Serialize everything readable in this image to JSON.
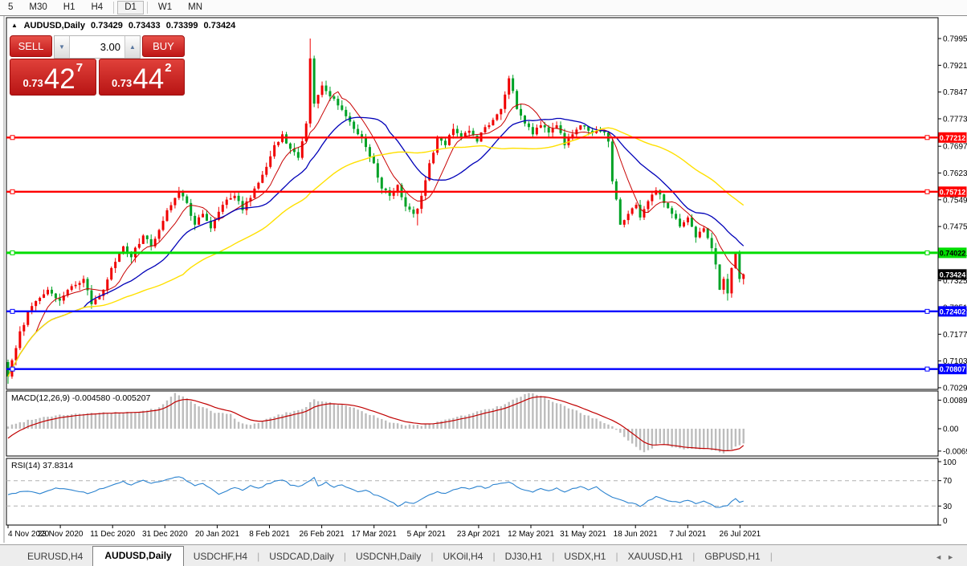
{
  "ui": {
    "timeframes": [
      {
        "label": "5"
      },
      {
        "label": "M30"
      },
      {
        "label": "H1"
      },
      {
        "label": "H4"
      },
      {
        "label": "D1",
        "active": true
      },
      {
        "label": "W1"
      },
      {
        "label": "MN"
      }
    ],
    "title": {
      "collapse_icon": "▲",
      "symbol": "AUDUSD,Daily"
    },
    "trade_panel": {
      "sell_label": "SELL",
      "buy_label": "BUY",
      "volume": "3.00",
      "spin_down": "▼",
      "spin_up": "▲",
      "sell_price": {
        "prefix": "0.73",
        "big": "42",
        "sup": "7"
      },
      "buy_price": {
        "prefix": "0.73",
        "big": "44",
        "sup": "2"
      }
    },
    "tab_bar": {
      "tabs": [
        {
          "label": "EURUSD,H4"
        },
        {
          "label": "AUDUSD,Daily",
          "active": true
        },
        {
          "label": "USDCHF,H4"
        },
        {
          "label": "USDCAD,Daily"
        },
        {
          "label": "USDCNH,Daily"
        },
        {
          "label": "UKOil,H4"
        },
        {
          "label": "DJ30,H1"
        },
        {
          "label": "USDX,H1"
        },
        {
          "label": "XAUUSD,H1"
        },
        {
          "label": "GBPUSD,H1"
        }
      ],
      "scroll_left": "◄",
      "scroll_right": "►"
    }
  },
  "chart_data": {
    "type": "candlestick",
    "symbol": "AUDUSD",
    "timeframe": "Daily",
    "quote": {
      "open": "0.73429",
      "high": "0.73433",
      "low": "0.73399",
      "close": "0.73424"
    },
    "current_price": "0.73424",
    "colors": {
      "up_candle": "#f00000",
      "down_candle": "#00a226",
      "ma_fast": "#c80000",
      "ma_mid": "#0000b8",
      "ma_slow": "#ffe000",
      "level_red": "#ff0000",
      "level_green": "#00dd00",
      "level_blue": "#0000ff",
      "macd_hist": "#bdbdbd",
      "macd_signal": "#c00000",
      "rsi_line": "#2a82cf"
    },
    "y_axis": {
      "ticks": [
        "0.79950",
        "0.79210",
        "0.78470",
        "0.77730",
        "0.76970",
        "0.76230",
        "0.75490",
        "0.74750",
        "0.74010",
        "0.73250",
        "0.72510",
        "0.71770",
        "0.71030",
        "0.70290"
      ]
    },
    "x_axis": {
      "labels": [
        "4 Nov 2020",
        "23 Nov 2020",
        "11 Dec 2020",
        "31 Dec 2020",
        "20 Jan 2021",
        "8 Feb 2021",
        "26 Feb 2021",
        "17 Mar 2021",
        "5 Apr 2021",
        "23 Apr 2021",
        "12 May 2021",
        "31 May 2021",
        "18 Jun 2021",
        "7 Jul 2021",
        "26 Jul 2021"
      ]
    },
    "levels": [
      {
        "price": "0.77212",
        "value": 0.77212,
        "color": "#ff0000",
        "text": "#ffffff"
      },
      {
        "price": "0.75712",
        "value": 0.75712,
        "color": "#ff0000",
        "text": "#ffffff"
      },
      {
        "price": "0.74022",
        "value": 0.74022,
        "color": "#00dd00",
        "text": "#000000"
      },
      {
        "price": "0.72402",
        "value": 0.72402,
        "color": "#0000ff",
        "text": "#ffffff"
      },
      {
        "price": "0.70807",
        "value": 0.70807,
        "color": "#0000ff",
        "text": "#ffffff"
      }
    ],
    "bars": 186,
    "close_anchors": [
      [
        0,
        0.706
      ],
      [
        1,
        0.7105
      ],
      [
        3,
        0.7185
      ],
      [
        6,
        0.7255
      ],
      [
        10,
        0.73
      ],
      [
        13,
        0.727
      ],
      [
        16,
        0.731
      ],
      [
        19,
        0.733
      ],
      [
        21,
        0.726
      ],
      [
        24,
        0.73
      ],
      [
        26,
        0.736
      ],
      [
        29,
        0.742
      ],
      [
        31,
        0.739
      ],
      [
        34,
        0.745
      ],
      [
        36,
        0.742
      ],
      [
        40,
        0.752
      ],
      [
        43,
        0.757
      ],
      [
        45,
        0.754
      ],
      [
        47,
        0.748
      ],
      [
        49,
        0.751
      ],
      [
        51,
        0.747
      ],
      [
        54,
        0.7535
      ],
      [
        57,
        0.756
      ],
      [
        59,
        0.752
      ],
      [
        62,
        0.758
      ],
      [
        65,
        0.764
      ],
      [
        67,
        0.77
      ],
      [
        69,
        0.773
      ],
      [
        71,
        0.769
      ],
      [
        73,
        0.7665
      ],
      [
        75,
        0.776
      ],
      [
        76,
        0.794
      ],
      [
        77,
        0.7815
      ],
      [
        79,
        0.7865
      ],
      [
        81,
        0.7835
      ],
      [
        83,
        0.781
      ],
      [
        85,
        0.778
      ],
      [
        87,
        0.7745
      ],
      [
        89,
        0.772
      ],
      [
        92,
        0.765
      ],
      [
        94,
        0.758
      ],
      [
        96,
        0.756
      ],
      [
        98,
        0.759
      ],
      [
        100,
        0.753
      ],
      [
        102,
        0.751
      ],
      [
        103,
        0.7524
      ],
      [
        104,
        0.756
      ],
      [
        106,
        0.765
      ],
      [
        108,
        0.772
      ],
      [
        110,
        0.77
      ],
      [
        112,
        0.7745
      ],
      [
        114,
        0.772
      ],
      [
        116,
        0.774
      ],
      [
        118,
        0.771
      ],
      [
        120,
        0.775
      ],
      [
        122,
        0.777
      ],
      [
        124,
        0.78
      ],
      [
        125,
        0.784
      ],
      [
        126,
        0.7885
      ],
      [
        127,
        0.785
      ],
      [
        128,
        0.78
      ],
      [
        130,
        0.776
      ],
      [
        132,
        0.773
      ],
      [
        134,
        0.7755
      ],
      [
        136,
        0.7735
      ],
      [
        138,
        0.7755
      ],
      [
        140,
        0.77
      ],
      [
        142,
        0.773
      ],
      [
        144,
        0.7755
      ],
      [
        146,
        0.774
      ],
      [
        148,
        0.774
      ],
      [
        150,
        0.7735
      ],
      [
        151,
        0.771
      ],
      [
        152,
        0.76
      ],
      [
        153,
        0.755
      ],
      [
        154,
        0.748
      ],
      [
        156,
        0.751
      ],
      [
        158,
        0.7535
      ],
      [
        159,
        0.75
      ],
      [
        161,
        0.7545
      ],
      [
        163,
        0.7575
      ],
      [
        165,
        0.754
      ],
      [
        167,
        0.751
      ],
      [
        169,
        0.7475
      ],
      [
        171,
        0.75
      ],
      [
        173,
        0.7445
      ],
      [
        175,
        0.747
      ],
      [
        177,
        0.7415
      ],
      [
        178,
        0.737
      ],
      [
        179,
        0.73
      ],
      [
        180,
        0.733
      ],
      [
        181,
        0.729
      ],
      [
        182,
        0.736
      ],
      [
        183,
        0.74
      ],
      [
        184,
        0.733
      ],
      [
        185,
        0.73424
      ]
    ],
    "wick_overrides": {
      "0": {
        "low": 0.704
      },
      "76": {
        "high": 0.7995
      },
      "103": {
        "low": 0.7478
      },
      "181": {
        "low": 0.727
      }
    },
    "moving_averages": [
      {
        "name": "fast",
        "period": 8,
        "color": "#c80000",
        "width": 1.0
      },
      {
        "name": "mid",
        "period": 20,
        "color": "#0000b8",
        "width": 1.3
      },
      {
        "name": "slow",
        "period": 45,
        "color": "#ffe000",
        "width": 1.4
      }
    ],
    "indicators": {
      "macd": {
        "name": "MACD(12,26,9)",
        "values_text": "-0.004580 -0.005207",
        "main_value": -0.00458,
        "signal_value": -0.005207,
        "axis": [
          "0.00890",
          "0.00",
          "-0.00697"
        ],
        "hist_anchors": [
          [
            0,
            0.0008
          ],
          [
            6,
            0.003
          ],
          [
            12,
            0.0042
          ],
          [
            20,
            0.0048
          ],
          [
            28,
            0.005
          ],
          [
            34,
            0.0055
          ],
          [
            38,
            0.0065
          ],
          [
            42,
            0.011
          ],
          [
            44,
            0.01
          ],
          [
            48,
            0.0072
          ],
          [
            52,
            0.005
          ],
          [
            56,
            0.0045
          ],
          [
            58,
            0.002
          ],
          [
            60,
            0.0012
          ],
          [
            62,
            0.0015
          ],
          [
            66,
            0.0035
          ],
          [
            70,
            0.005
          ],
          [
            74,
            0.006
          ],
          [
            77,
            0.009
          ],
          [
            80,
            0.0082
          ],
          [
            84,
            0.0075
          ],
          [
            88,
            0.006
          ],
          [
            92,
            0.004
          ],
          [
            96,
            0.0018
          ],
          [
            100,
            0.0012
          ],
          [
            104,
            0.001
          ],
          [
            108,
            0.0022
          ],
          [
            112,
            0.0035
          ],
          [
            116,
            0.0045
          ],
          [
            120,
            0.006
          ],
          [
            124,
            0.007
          ],
          [
            128,
            0.0095
          ],
          [
            131,
            0.0112
          ],
          [
            134,
            0.01
          ],
          [
            138,
            0.008
          ],
          [
            142,
            0.006
          ],
          [
            146,
            0.004
          ],
          [
            150,
            0.0018
          ],
          [
            152,
            0.0005
          ],
          [
            154,
            -0.0015
          ],
          [
            156,
            -0.0035
          ],
          [
            158,
            -0.0055
          ],
          [
            160,
            -0.0074
          ],
          [
            162,
            -0.006
          ],
          [
            164,
            -0.0045
          ],
          [
            166,
            -0.0052
          ],
          [
            168,
            -0.006
          ],
          [
            170,
            -0.0063
          ],
          [
            172,
            -0.006
          ],
          [
            174,
            -0.0062
          ],
          [
            176,
            -0.0065
          ],
          [
            178,
            -0.007
          ],
          [
            180,
            -0.0076
          ],
          [
            182,
            -0.0065
          ],
          [
            184,
            -0.005
          ],
          [
            185,
            -0.00458
          ]
        ]
      },
      "rsi": {
        "name": "RSI(14)",
        "value": "37.8314",
        "value_num": 37.8314,
        "axis": [
          "100",
          "70",
          "30",
          "0"
        ],
        "guide_levels": [
          70,
          30
        ],
        "anchors": [
          [
            0,
            48
          ],
          [
            4,
            54
          ],
          [
            8,
            50
          ],
          [
            12,
            58
          ],
          [
            16,
            55
          ],
          [
            20,
            50
          ],
          [
            23,
            56
          ],
          [
            26,
            62
          ],
          [
            29,
            68
          ],
          [
            31,
            64
          ],
          [
            34,
            70
          ],
          [
            36,
            66
          ],
          [
            40,
            72
          ],
          [
            43,
            77
          ],
          [
            45,
            70
          ],
          [
            47,
            62
          ],
          [
            49,
            66
          ],
          [
            51,
            58
          ],
          [
            53,
            48
          ],
          [
            55,
            54
          ],
          [
            57,
            60
          ],
          [
            59,
            55
          ],
          [
            61,
            63
          ],
          [
            63,
            58
          ],
          [
            65,
            64
          ],
          [
            67,
            69
          ],
          [
            69,
            72
          ],
          [
            71,
            64
          ],
          [
            73,
            60
          ],
          [
            75,
            66
          ],
          [
            77,
            74
          ],
          [
            78,
            62
          ],
          [
            80,
            67
          ],
          [
            82,
            60
          ],
          [
            84,
            64
          ],
          [
            86,
            57
          ],
          [
            88,
            52
          ],
          [
            90,
            56
          ],
          [
            92,
            48
          ],
          [
            94,
            44
          ],
          [
            96,
            38
          ],
          [
            98,
            30
          ],
          [
            100,
            36
          ],
          [
            102,
            33
          ],
          [
            104,
            40
          ],
          [
            106,
            48
          ],
          [
            108,
            52
          ],
          [
            110,
            49
          ],
          [
            112,
            55
          ],
          [
            114,
            60
          ],
          [
            116,
            57
          ],
          [
            118,
            62
          ],
          [
            120,
            58
          ],
          [
            122,
            63
          ],
          [
            124,
            66
          ],
          [
            126,
            68
          ],
          [
            128,
            60
          ],
          [
            130,
            55
          ],
          [
            132,
            52
          ],
          [
            134,
            57
          ],
          [
            136,
            53
          ],
          [
            138,
            58
          ],
          [
            140,
            52
          ],
          [
            142,
            57
          ],
          [
            144,
            60
          ],
          [
            146,
            56
          ],
          [
            148,
            60
          ],
          [
            150,
            52
          ],
          [
            152,
            44
          ],
          [
            154,
            40
          ],
          [
            156,
            36
          ],
          [
            158,
            32
          ],
          [
            159,
            30
          ],
          [
            161,
            38
          ],
          [
            163,
            45
          ],
          [
            165,
            40
          ],
          [
            167,
            38
          ],
          [
            169,
            35
          ],
          [
            171,
            39
          ],
          [
            173,
            34
          ],
          [
            175,
            37
          ],
          [
            177,
            32
          ],
          [
            178,
            29
          ],
          [
            179,
            28
          ],
          [
            181,
            31
          ],
          [
            183,
            42
          ],
          [
            184,
            35
          ],
          [
            185,
            37.83
          ]
        ]
      }
    }
  }
}
